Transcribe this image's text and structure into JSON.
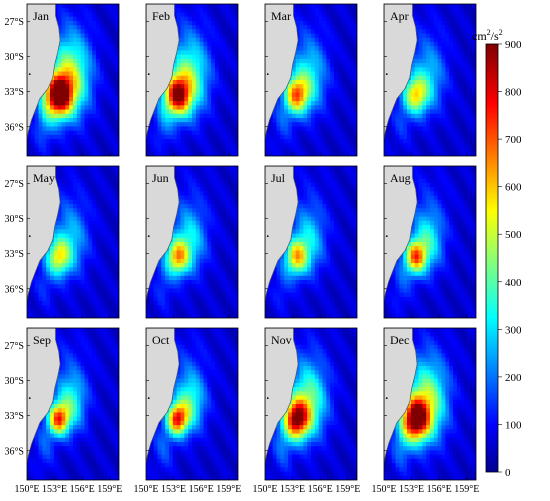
{
  "chart_data": {
    "type": "heatmap",
    "title": "",
    "colorbar": {
      "label_base": "cm",
      "label_sup1": "2",
      "label_mid": "/s",
      "label_sup2": "2",
      "min": 0,
      "max": 900,
      "ticks": [
        0,
        100,
        200,
        300,
        400,
        500,
        600,
        700,
        800,
        900
      ],
      "colormap": "jet"
    },
    "x_ticks": [
      "150°E",
      "153°E",
      "156°E",
      "159°E"
    ],
    "y_ticks": [
      "27°S",
      "30°S",
      "33°S",
      "36°S"
    ],
    "lon_range": [
      150,
      160
    ],
    "lat_range": [
      -38.5,
      -25.5
    ],
    "panels": [
      {
        "month": "Jan",
        "peak": 820,
        "spread": 1.15
      },
      {
        "month": "Feb",
        "peak": 700,
        "spread": 1.1
      },
      {
        "month": "Mar",
        "peak": 540,
        "spread": 1.0
      },
      {
        "month": "Apr",
        "peak": 440,
        "spread": 1.0
      },
      {
        "month": "May",
        "peak": 420,
        "spread": 1.0
      },
      {
        "month": "Jun",
        "peak": 500,
        "spread": 0.95
      },
      {
        "month": "Jul",
        "peak": 470,
        "spread": 0.95
      },
      {
        "month": "Aug",
        "peak": 560,
        "spread": 0.9
      },
      {
        "month": "Sep",
        "peak": 600,
        "spread": 0.85
      },
      {
        "month": "Oct",
        "peak": 640,
        "spread": 0.85
      },
      {
        "month": "Nov",
        "peak": 720,
        "spread": 1.05
      },
      {
        "month": "Dec",
        "peak": 780,
        "spread": 1.15
      }
    ],
    "colors": {
      "land": "#d9d9d9",
      "coast": "#555555",
      "frame": "#000000"
    }
  }
}
